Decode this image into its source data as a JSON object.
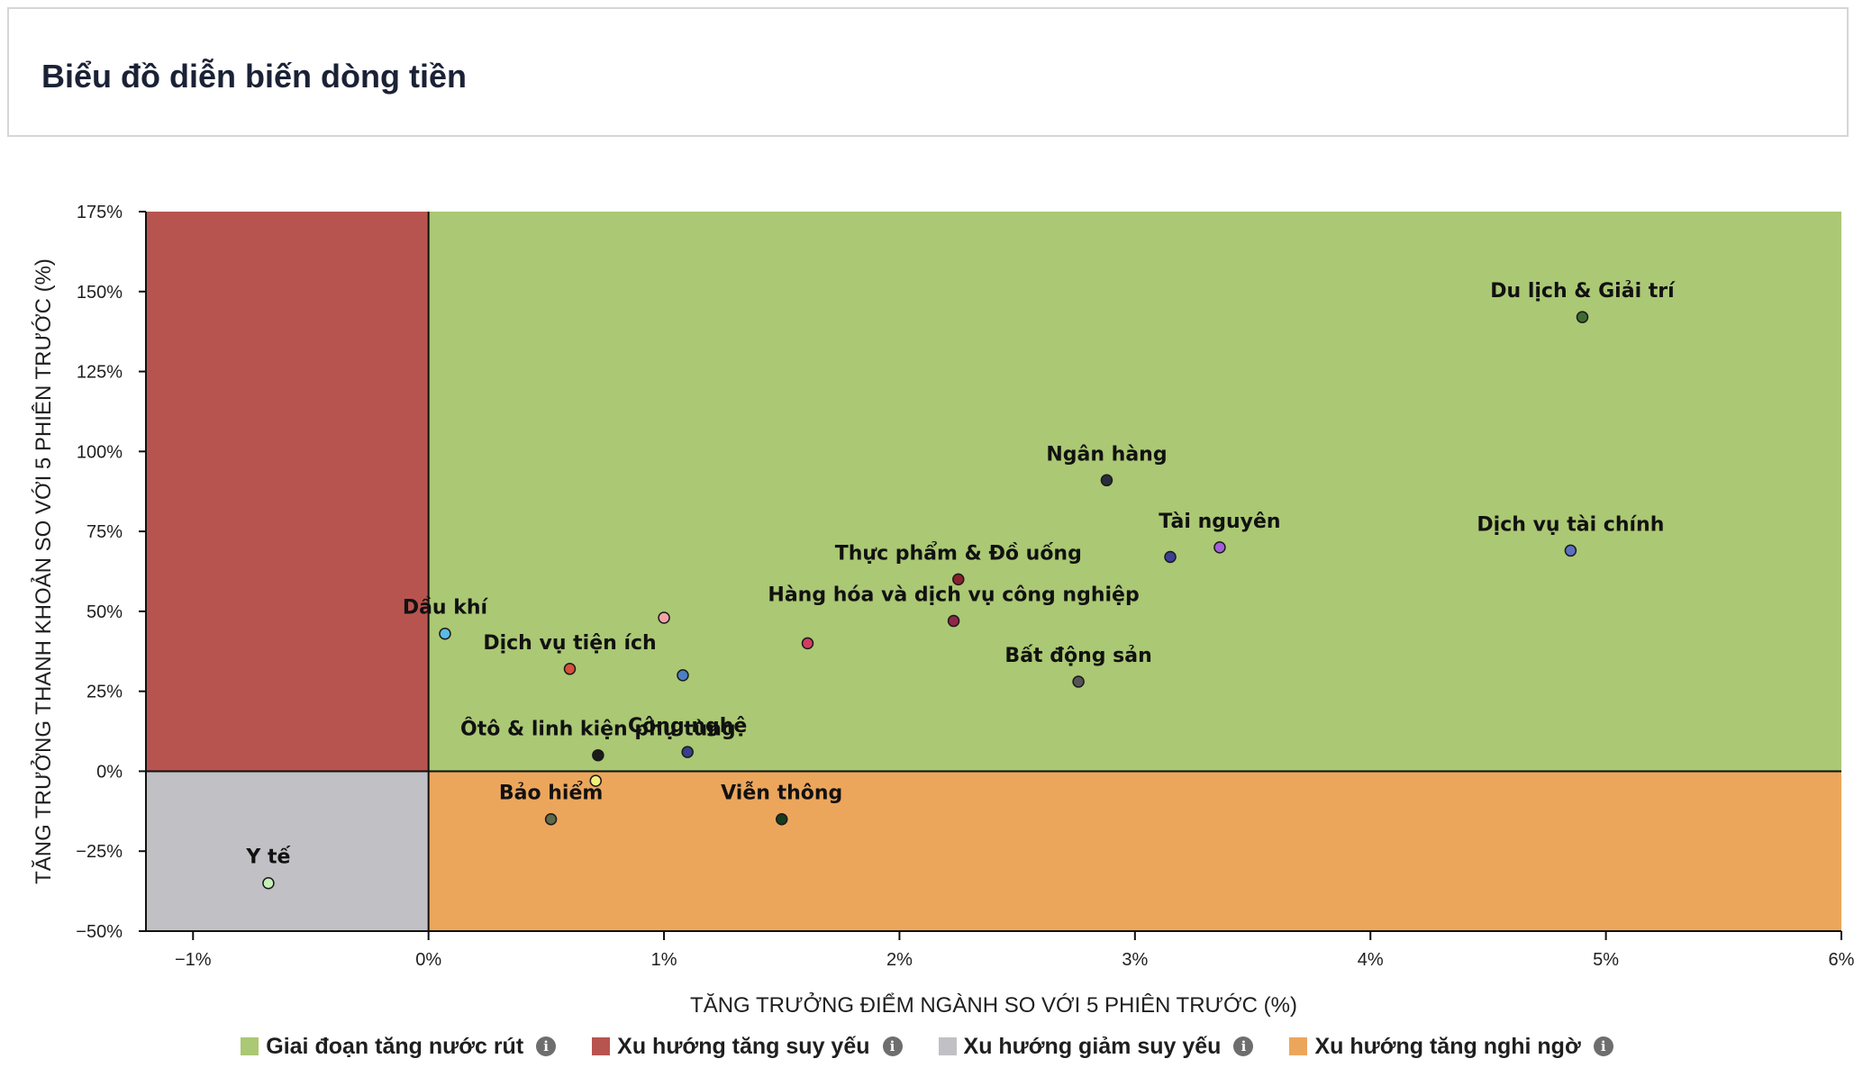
{
  "header": {
    "title": "Biểu đồ diễn biến dòng tiền"
  },
  "chart_data": {
    "type": "scatter",
    "title": "",
    "xlabel": "TĂNG TRƯỞNG ĐIỂM NGÀNH SO VỚI 5 PHIÊN TRƯỚC (%)",
    "ylabel": "TĂNG TRƯỞNG THANH KHOẢN SO VỚI 5 PHIÊN TRƯỚC (%)",
    "xlim": [
      -1.2,
      6
    ],
    "ylim": [
      -50,
      175
    ],
    "x_ticks": [
      -1,
      0,
      1,
      2,
      3,
      4,
      5,
      6
    ],
    "x_tick_labels": [
      "−1%",
      "0%",
      "1%",
      "2%",
      "3%",
      "4%",
      "5%",
      "6%"
    ],
    "y_ticks": [
      -50,
      -25,
      0,
      25,
      50,
      75,
      100,
      125,
      150,
      175
    ],
    "y_tick_labels": [
      "−50%",
      "−25%",
      "0%",
      "25%",
      "50%",
      "75%",
      "100%",
      "125%",
      "150%",
      "175%"
    ],
    "regions": [
      {
        "name": "Giai đoạn tăng nước rút",
        "color": "#abc874",
        "x": [
          0,
          6
        ],
        "y": [
          0,
          175
        ]
      },
      {
        "name": "Xu hướng tăng suy yếu",
        "color": "#b8544f",
        "x": [
          -1.2,
          0
        ],
        "y": [
          0,
          175
        ]
      },
      {
        "name": "Xu hướng giảm suy yếu",
        "color": "#c0c0c5",
        "x": [
          -1.2,
          0
        ],
        "y": [
          -50,
          0
        ]
      },
      {
        "name": "Xu hướng tăng nghi ngờ",
        "color": "#eca65c",
        "x": [
          0,
          6
        ],
        "y": [
          -50,
          0
        ]
      }
    ],
    "points": [
      {
        "label": "Du lịch & Giải trí",
        "x": 4.9,
        "y": 142,
        "color": "#3f6b2f"
      },
      {
        "label": "Ngân hàng",
        "x": 2.88,
        "y": 91,
        "color": "#2a2e3a"
      },
      {
        "label": "Tài nguyên",
        "x": 3.36,
        "y": 70,
        "color": "#a25fd8"
      },
      {
        "label": "",
        "x": 3.15,
        "y": 67,
        "color": "#3d3f96"
      },
      {
        "label": "Dịch vụ tài chính",
        "x": 4.85,
        "y": 69,
        "color": "#5d6fc4"
      },
      {
        "label": "Thực phẩm & Đồ uống",
        "x": 2.25,
        "y": 60,
        "color": "#8a1f2d"
      },
      {
        "label": "Hàng hóa và dịch vụ công nghiệp",
        "x": 2.23,
        "y": 47,
        "color": "#8f2846"
      },
      {
        "label": "",
        "x": 1.61,
        "y": 40,
        "color": "#d23c63"
      },
      {
        "label": "Bất động sản",
        "x": 2.76,
        "y": 28,
        "color": "#555555"
      },
      {
        "label": "Dầu khí",
        "x": 0.07,
        "y": 43,
        "color": "#5bb9e4"
      },
      {
        "label": "",
        "x": 1.0,
        "y": 48,
        "color": "#f3a3a8"
      },
      {
        "label": "Dịch vụ tiện ích",
        "x": 0.6,
        "y": 32,
        "color": "#d6503a"
      },
      {
        "label": "",
        "x": 1.08,
        "y": 30,
        "color": "#4a7fc4"
      },
      {
        "label": "Công nghệ",
        "x": 1.1,
        "y": 6,
        "color": "#36408c"
      },
      {
        "label": "Ôtô & linh kiện phụ tùng",
        "x": 0.72,
        "y": 5,
        "color": "#1b1b1b"
      },
      {
        "label": "",
        "x": 0.71,
        "y": -3,
        "color": "#f1f07c"
      },
      {
        "label": "Bảo hiểm",
        "x": 0.52,
        "y": -15,
        "color": "#5f6a49"
      },
      {
        "label": "Viễn thông",
        "x": 1.5,
        "y": -15,
        "color": "#173d1c"
      },
      {
        "label": "Y tế",
        "x": -0.68,
        "y": -35,
        "color": "#c6f0b8"
      }
    ],
    "legend_position": "bottom"
  },
  "legend": {
    "items": [
      {
        "label": "Giai đoạn tăng nước rút",
        "color": "#abc874",
        "icon": "info-icon"
      },
      {
        "label": "Xu hướng tăng suy yếu",
        "color": "#b8544f",
        "icon": "info-icon"
      },
      {
        "label": "Xu hướng giảm suy yếu",
        "color": "#c0c0c5",
        "icon": "info-icon"
      },
      {
        "label": "Xu hướng tăng nghi ngờ",
        "color": "#eca65c",
        "icon": "info-icon"
      }
    ],
    "info_glyph": "i"
  }
}
